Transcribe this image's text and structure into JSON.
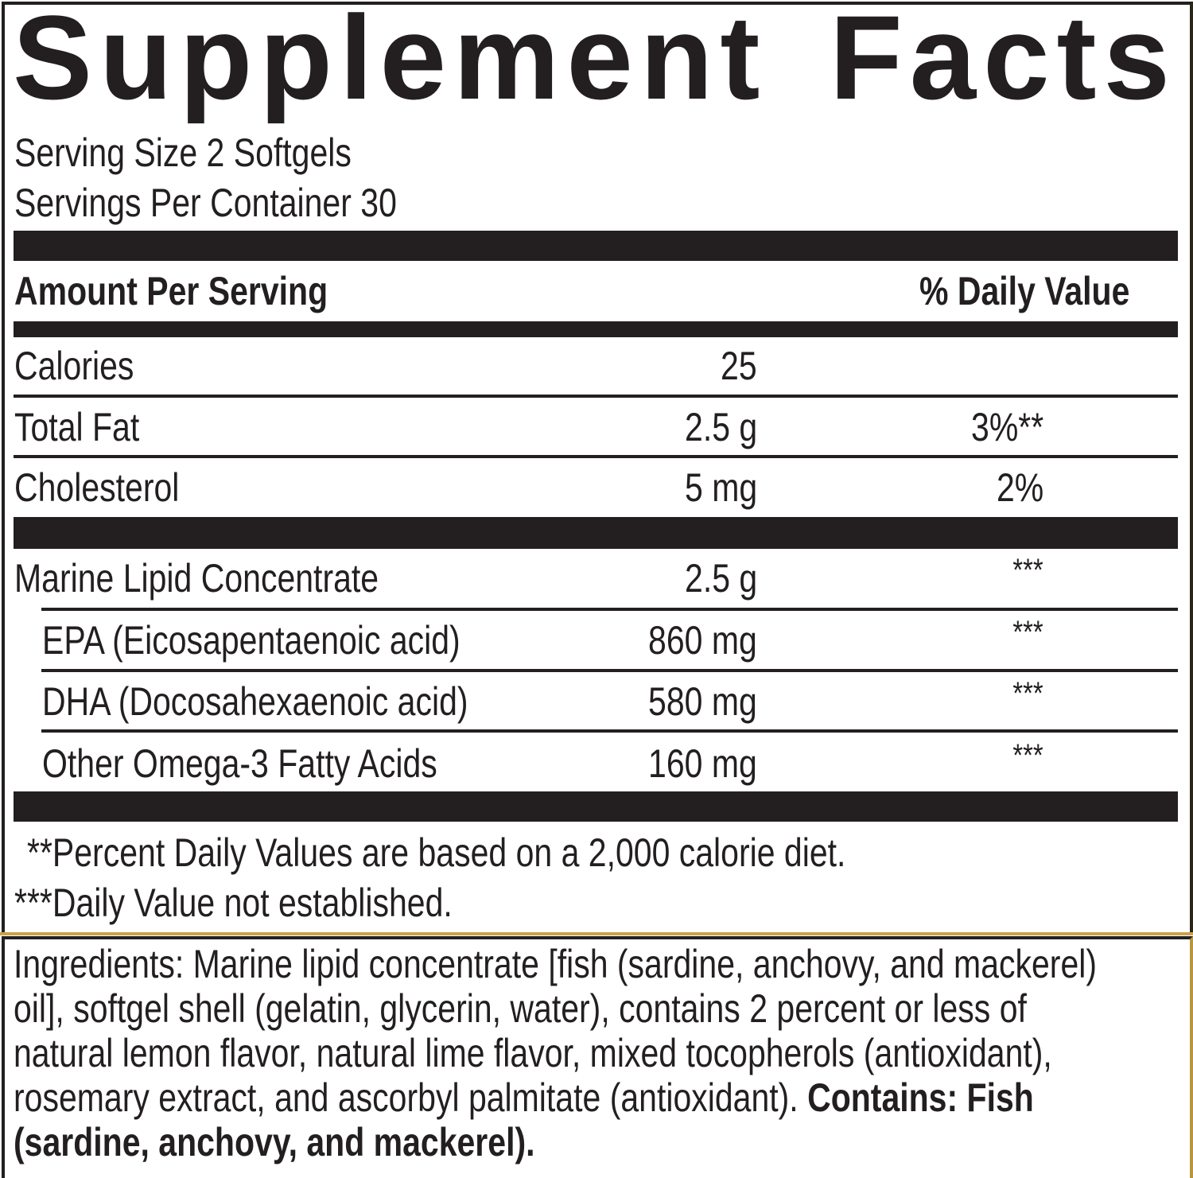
{
  "title": "Supplement Facts",
  "serving_size": "Serving Size 2 Softgels",
  "servings_per_container": "Servings Per Container 30",
  "header": {
    "amount": "Amount Per Serving",
    "dv": "% Daily Value"
  },
  "rows": [
    {
      "name": "Calories",
      "amount": "25",
      "dv": ""
    },
    {
      "name": "Total Fat",
      "amount": "2.5 g",
      "dv": "3%**"
    },
    {
      "name": "Cholesterol",
      "amount": "5 mg",
      "dv": "2%"
    },
    {
      "name": "Marine Lipid Concentrate",
      "amount": "2.5 g",
      "dv": "***"
    },
    {
      "name": "EPA (Eicosapentaenoic acid)",
      "amount": "860 mg",
      "dv": "***"
    },
    {
      "name": "DHA (Docosahexaenoic acid)",
      "amount": "580 mg",
      "dv": "***"
    },
    {
      "name": "Other Omega-3 Fatty Acids",
      "amount": "160 mg",
      "dv": "***"
    }
  ],
  "footnotes": [
    "**Percent Daily Values are based on a 2,000 calorie diet.",
    "***Daily Value not established."
  ],
  "ingredients": {
    "lines": [
      {
        "normal": "Ingredients: Marine lipid concentrate [fish (sardine, anchovy, and mackerel)",
        "bold": ""
      },
      {
        "normal": "oil], softgel shell (gelatin, glycerin, water), contains 2 percent or less of",
        "bold": ""
      },
      {
        "normal": "natural lemon flavor, natural lime flavor, mixed tocopherols (antioxidant),",
        "bold": ""
      },
      {
        "normal": "rosemary extract, and ascorbyl palmitate (antioxidant). ",
        "bold": "Contains: Fish"
      },
      {
        "normal": "",
        "bold": "(sardine, anchovy, and mackerel)."
      }
    ]
  },
  "colors": {
    "text": "#231f20",
    "divider_gold": "#c9a24a"
  }
}
